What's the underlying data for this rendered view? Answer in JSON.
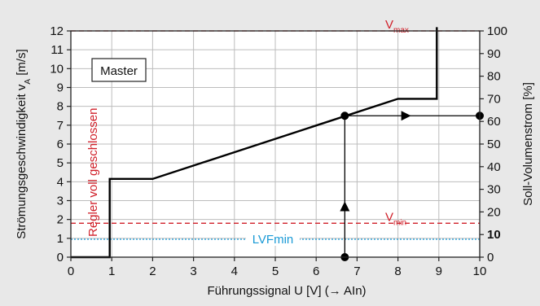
{
  "chart_data": {
    "type": "line",
    "xlabel": "Führungssignal U [V] (→ AIn)",
    "ylabel_left": "Strömungsgeschwindigkeit v",
    "ylabel_left_sub": "A",
    "ylabel_left_unit": " [m/s]",
    "ylabel_right": "Soll-Volumenstrom [%]",
    "xlim": [
      0,
      10
    ],
    "ylim_left": [
      0,
      12
    ],
    "ylim_right": [
      0,
      100
    ],
    "x_ticks": [
      "0",
      "1",
      "2",
      "3",
      "4",
      "5",
      "6",
      "7",
      "8",
      "9",
      "10"
    ],
    "y_left_ticks": [
      "0",
      "1",
      "2",
      "3",
      "4",
      "5",
      "6",
      "7",
      "8",
      "9",
      "10",
      "11",
      "12"
    ],
    "y_right_ticks": [
      "0",
      "10",
      "20",
      "30",
      "40",
      "50",
      "60",
      "70",
      "80",
      "90",
      "100"
    ],
    "grid": true,
    "series": [
      {
        "x": [
          0,
          0.95,
          0.95,
          2.0,
          8.0,
          8.95,
          8.95
        ],
        "y": [
          0,
          0,
          4.15,
          4.15,
          8.4,
          8.4,
          12.2
        ],
        "color": "#000000"
      }
    ],
    "reference_lines": [
      {
        "value": 12,
        "color": "#d0202a",
        "label": "V",
        "label_sub": "max",
        "style": "dashed"
      },
      {
        "value": 1.8,
        "color": "#d0202a",
        "label": "V",
        "label_sub": "min",
        "style": "dashed"
      },
      {
        "value": 0.95,
        "color": "#1a9ad6",
        "label": "LVFmin",
        "style": "dotted"
      }
    ],
    "example": {
      "x": 6.7,
      "y": 7.5,
      "percent": 62.5,
      "color": "#000000"
    },
    "annotations": {
      "mode_box": "Master",
      "regler_text": "Regler voll geschlossen"
    }
  },
  "colors": {
    "red": "#d0202a",
    "blue": "#1a9ad6",
    "grid": "#bdbdbd",
    "plot_bg": "#ffffff",
    "page_bg": "#e8e8e8"
  }
}
